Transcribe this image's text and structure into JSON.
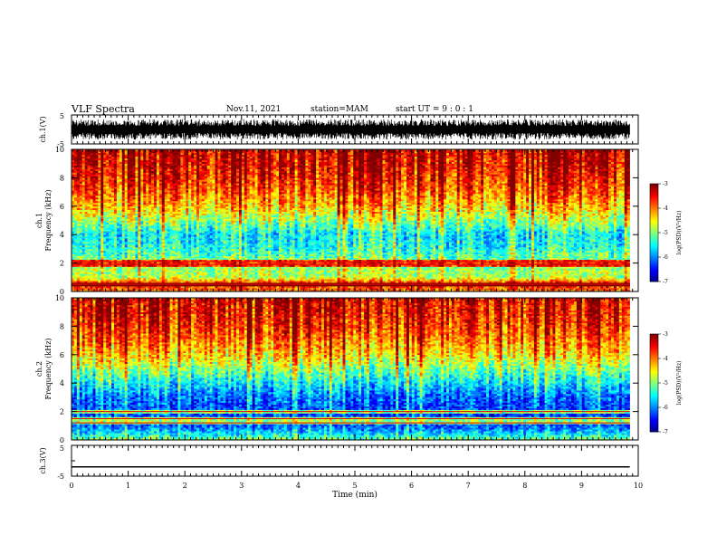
{
  "header": {
    "title": "VLF Spectra",
    "date": "Nov.11, 2021",
    "station": "station=MAM",
    "start": "start UT =  9 : 0 : 1"
  },
  "chart_data": [
    {
      "type": "line",
      "panel": "ch1-waveform",
      "ylabel": "ch.1(V)",
      "ylim": [
        -5,
        5
      ],
      "yticks": [
        "5",
        "-5"
      ],
      "xlim": [
        0,
        10
      ],
      "series": [
        {
          "values_description_free": true,
          "amplitude_range": [
            -3.5,
            3.5
          ]
        }
      ],
      "color": "#000000"
    },
    {
      "type": "heatmap",
      "panel": "ch1-spectrogram",
      "ylabel": "ch.1 Frequency (kHz)",
      "ylim": [
        0,
        10
      ],
      "yticks": [
        "0",
        "2",
        "4",
        "6",
        "8",
        "10"
      ],
      "xlim": [
        0,
        9.85
      ],
      "colorbar": {
        "label": "log(PSD)(V²/Hz)",
        "range": [
          -7,
          -3
        ],
        "ticks": [
          "-3",
          "-4",
          "-5",
          "-6",
          "-7"
        ]
      },
      "profile_khz": [
        [
          0,
          -4.0
        ],
        [
          0.6,
          -3.6
        ],
        [
          1.0,
          -4.8
        ],
        [
          2.0,
          -4.9
        ],
        [
          3.0,
          -5.4
        ],
        [
          4.0,
          -5.6
        ],
        [
          5.0,
          -4.9
        ],
        [
          6.0,
          -4.3
        ],
        [
          7.0,
          -3.9
        ],
        [
          8.0,
          -3.6
        ],
        [
          9.0,
          -3.4
        ],
        [
          10.0,
          -3.3
        ]
      ],
      "lines_khz": [
        0.5,
        1.9,
        2.1
      ]
    },
    {
      "type": "heatmap",
      "panel": "ch2-spectrogram",
      "ylabel": "ch.2 Frequency (kHz)",
      "ylim": [
        0,
        10
      ],
      "yticks": [
        "0",
        "2",
        "4",
        "6",
        "8",
        "10"
      ],
      "xlim": [
        0,
        9.85
      ],
      "colorbar": {
        "label": "log(PSD)(V²/Hz)",
        "range": [
          -7,
          -3
        ],
        "ticks": [
          "-3",
          "-4",
          "-5",
          "-6",
          "-7"
        ]
      },
      "profile_khz": [
        [
          0,
          -5.0
        ],
        [
          0.3,
          -5.4
        ],
        [
          1.0,
          -6.2
        ],
        [
          2.0,
          -6.3
        ],
        [
          3.0,
          -6.1
        ],
        [
          4.0,
          -5.6
        ],
        [
          5.0,
          -5.0
        ],
        [
          6.0,
          -4.4
        ],
        [
          7.0,
          -4.0
        ],
        [
          8.0,
          -3.7
        ],
        [
          9.0,
          -3.5
        ],
        [
          10.0,
          -3.4
        ]
      ],
      "lines_khz": [
        1.2,
        1.5,
        2.0
      ]
    },
    {
      "type": "line",
      "panel": "ch3-waveform",
      "ylabel": "ch.3(V)",
      "ylim": [
        -5,
        5
      ],
      "yticks": [
        "5",
        "-5"
      ],
      "xlabel": "Time  (min)",
      "xlim": [
        0,
        10
      ],
      "xticks": [
        "0",
        "1",
        "2",
        "3",
        "4",
        "5",
        "6",
        "7",
        "8",
        "9",
        "10"
      ],
      "series": [
        {
          "x": [
            0,
            9.85
          ],
          "y": [
            -2,
            -2
          ]
        }
      ],
      "color": "#000000"
    }
  ]
}
